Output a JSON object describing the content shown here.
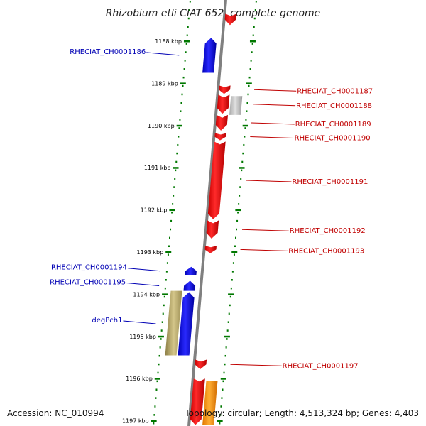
{
  "title": "Rhizobium etli CIAT 652, complete genome",
  "footer": {
    "accession": "Accession: NC_010994",
    "stats": "Topology: circular; Length: 4,513,324 bp; Genes: 4,403"
  },
  "colors": {
    "forward": "#f00000",
    "reverse": "#0000f0",
    "forward_label": "#c00000",
    "reverse_label": "#0000b4",
    "pseudo": "#c0c0c0",
    "gene_a": "#c8b878",
    "gene_b": "#ff9900",
    "tick": "#007800",
    "backbone": "#808080"
  },
  "ticks": [
    {
      "pos_kbp": 1188,
      "label": "1188 kbp"
    },
    {
      "pos_kbp": 1189,
      "label": "1189 kbp"
    },
    {
      "pos_kbp": 1190,
      "label": "1190 kbp"
    },
    {
      "pos_kbp": 1191,
      "label": "1191 kbp"
    },
    {
      "pos_kbp": 1192,
      "label": "1192 kbp"
    },
    {
      "pos_kbp": 1193,
      "label": "1193 kbp"
    },
    {
      "pos_kbp": 1194,
      "label": "1194 kbp"
    },
    {
      "pos_kbp": 1195,
      "label": "1195 kbp"
    },
    {
      "pos_kbp": 1196,
      "label": "1196 kbp"
    },
    {
      "pos_kbp": 1197,
      "label": "1197 kbp"
    }
  ],
  "genes": [
    {
      "name": "",
      "strand": "+",
      "ring": 0,
      "type": "forward",
      "start_kbp": 1187.35,
      "end_kbp": 1187.62
    },
    {
      "name": "RHECIAT_CH0001186",
      "strand": "-",
      "ring": 0,
      "type": "reverse",
      "start_kbp": 1187.92,
      "end_kbp": 1188.75
    },
    {
      "name": "RHECIAT_CH0001187",
      "strand": "+",
      "ring": 0,
      "type": "forward",
      "start_kbp": 1189.05,
      "end_kbp": 1189.25
    },
    {
      "name": "RHECIAT_CH0001188",
      "strand": "+",
      "ring": 0,
      "type": "forward",
      "start_kbp": 1189.27,
      "end_kbp": 1189.72
    },
    {
      "name": "",
      "strand": "+",
      "ring": 1,
      "type": "pseudo",
      "start_kbp": 1189.3,
      "end_kbp": 1189.75
    },
    {
      "name": "RHECIAT_CH0001189",
      "strand": "+",
      "ring": 0,
      "type": "forward",
      "start_kbp": 1189.75,
      "end_kbp": 1190.12
    },
    {
      "name": "RHECIAT_CH0001190",
      "strand": "+",
      "ring": 0,
      "type": "forward",
      "start_kbp": 1190.18,
      "end_kbp": 1190.35
    },
    {
      "name": "RHECIAT_CH0001191",
      "strand": "+",
      "ring": 0,
      "type": "forward",
      "start_kbp": 1190.38,
      "end_kbp": 1192.22
    },
    {
      "name": "RHECIAT_CH0001192",
      "strand": "+",
      "ring": 0,
      "type": "forward",
      "start_kbp": 1192.25,
      "end_kbp": 1192.68
    },
    {
      "name": "RHECIAT_CH0001193",
      "strand": "+",
      "ring": 0,
      "type": "forward",
      "start_kbp": 1192.85,
      "end_kbp": 1193.03
    },
    {
      "name": "RHECIAT_CH0001194",
      "strand": "-",
      "ring": 0,
      "type": "reverse",
      "start_kbp": 1193.35,
      "end_kbp": 1193.55
    },
    {
      "name": "RHECIAT_CH0001195",
      "strand": "-",
      "ring": 0,
      "type": "reverse",
      "start_kbp": 1193.68,
      "end_kbp": 1193.92
    },
    {
      "name": "degPch1",
      "strand": "-",
      "ring": 0,
      "type": "reverse",
      "start_kbp": 1193.95,
      "end_kbp": 1195.45
    },
    {
      "name": "",
      "strand": "-",
      "ring": 1,
      "type": "gene_a",
      "start_kbp": 1193.92,
      "end_kbp": 1195.45
    },
    {
      "name": "RHECIAT_CH0001197",
      "strand": "+",
      "ring": 0,
      "type": "forward",
      "start_kbp": 1195.55,
      "end_kbp": 1195.78
    },
    {
      "name": "",
      "strand": "+",
      "ring": 0,
      "type": "forward",
      "start_kbp": 1196.0,
      "end_kbp": 1197.1
    },
    {
      "name": "",
      "strand": "+",
      "ring": 1,
      "type": "gene_b",
      "start_kbp": 1196.05,
      "end_kbp": 1197.1
    }
  ]
}
